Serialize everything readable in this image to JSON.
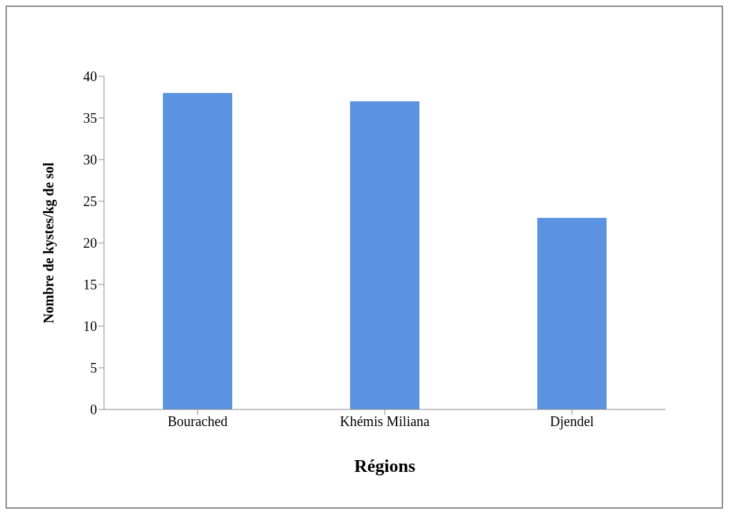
{
  "chart_data": {
    "type": "bar",
    "xlabel": "Régions",
    "ylabel": "Nombre de kystes/kg de sol",
    "categories": [
      "Bourached",
      "Khémis Miliana",
      "Djendel"
    ],
    "values": [
      38,
      37,
      23
    ],
    "color": "#5b93e0",
    "ylim": [
      0,
      40
    ],
    "yticks": [
      0,
      5,
      10,
      15,
      20,
      25,
      30,
      35,
      40
    ],
    "grid": false,
    "legend": false
  }
}
